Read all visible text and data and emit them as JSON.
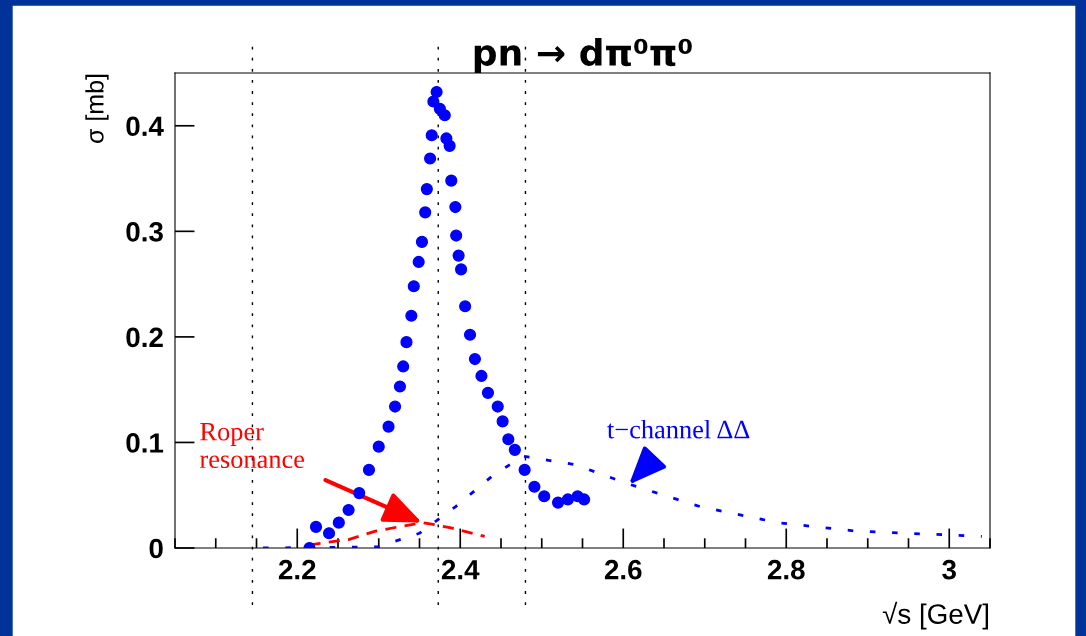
{
  "chart_data": {
    "type": "scatter",
    "title": "pn → dπ⁰π⁰",
    "xlabel": "√s [GeV]",
    "ylabel": "σ [mb]",
    "xlim": [
      2.05,
      3.05
    ],
    "ylim": [
      0,
      0.45
    ],
    "xticks": [
      {
        "value": 2.05,
        "label": null
      },
      {
        "value": 2.1,
        "label": null
      },
      {
        "value": 2.15,
        "label": null
      },
      2.2,
      {
        "value": 2.25,
        "label": null
      },
      {
        "value": 2.3,
        "label": null
      },
      {
        "value": 2.35,
        "label": null
      },
      2.4,
      {
        "value": 2.45,
        "label": null
      },
      {
        "value": 2.5,
        "label": null
      },
      {
        "value": 2.55,
        "label": null
      },
      2.6,
      {
        "value": 2.65,
        "label": null
      },
      {
        "value": 2.7,
        "label": null
      },
      {
        "value": 2.75,
        "label": null
      },
      2.8,
      {
        "value": 2.85,
        "label": null
      },
      {
        "value": 2.9,
        "label": null
      },
      {
        "value": 2.95,
        "label": null
      },
      3,
      {
        "value": 3.05,
        "label": null
      }
    ],
    "yticks": [
      0,
      0.1,
      0.2,
      0.3,
      0.4
    ],
    "grid": false,
    "legend": false,
    "series": [
      {
        "color": "#0000ff",
        "marker": "circle",
        "x": [
          2.215,
          2.223,
          2.239,
          2.251,
          2.263,
          2.276,
          2.288,
          2.3,
          2.312,
          2.32,
          2.326,
          2.33,
          2.334,
          2.34,
          2.343,
          2.349,
          2.353,
          2.357,
          2.359,
          2.363,
          2.365,
          2.367,
          2.371,
          2.375,
          2.381,
          2.383,
          2.387,
          2.389,
          2.394,
          2.395,
          2.398,
          2.401,
          2.406,
          2.412,
          2.418,
          2.426,
          2.434,
          2.446,
          2.452,
          2.459,
          2.467,
          2.479,
          2.491,
          2.503,
          2.52,
          2.532,
          2.544,
          2.552
        ],
        "values": [
          0.0,
          0.02,
          0.014,
          0.024,
          0.036,
          0.052,
          0.074,
          0.096,
          0.115,
          0.134,
          0.153,
          0.172,
          0.195,
          0.22,
          0.248,
          0.271,
          0.29,
          0.318,
          0.34,
          0.369,
          0.391,
          0.423,
          0.432,
          0.416,
          0.41,
          0.388,
          0.381,
          0.348,
          0.323,
          0.296,
          0.277,
          0.264,
          0.229,
          0.202,
          0.179,
          0.163,
          0.147,
          0.134,
          0.12,
          0.103,
          0.093,
          0.074,
          0.058,
          0.049,
          0.043,
          0.046,
          0.049,
          0.046
        ]
      },
      {
        "type": "line",
        "color": "#ff0000",
        "line_style": "dashed",
        "marker": "none",
        "x": [
          2.215,
          2.263,
          2.296,
          2.324,
          2.353,
          2.369,
          2.389,
          2.43
        ],
        "values": [
          0.003,
          0.008,
          0.016,
          0.02,
          0.024,
          0.022,
          0.019,
          0.011
        ]
      },
      {
        "type": "line",
        "color": "#0000ff",
        "line_style": "dotted",
        "marker": "none",
        "x": [
          2.158,
          2.299,
          2.35,
          2.394,
          2.439,
          2.477,
          2.541,
          2.605,
          2.695,
          2.79,
          2.886,
          3.04
        ],
        "values": [
          0.0,
          0.001,
          0.014,
          0.039,
          0.068,
          0.087,
          0.079,
          0.061,
          0.039,
          0.024,
          0.016,
          0.011
        ]
      }
    ],
    "ref_lines": [
      {
        "axis": "x",
        "value": 2.145,
        "color": "#000000",
        "line_style": "dotted"
      },
      {
        "axis": "x",
        "value": 2.373,
        "color": "#000000",
        "line_style": "dotted"
      },
      {
        "axis": "x",
        "value": 2.48,
        "color": "#000000",
        "line_style": "dotted"
      }
    ],
    "annotations": [
      {
        "text": "Roper\nresonance",
        "x": 2.353,
        "y": 0.024
      },
      {
        "text": "t−channel ΔΔ",
        "x": 2.607,
        "y": 0.06
      }
    ]
  }
}
